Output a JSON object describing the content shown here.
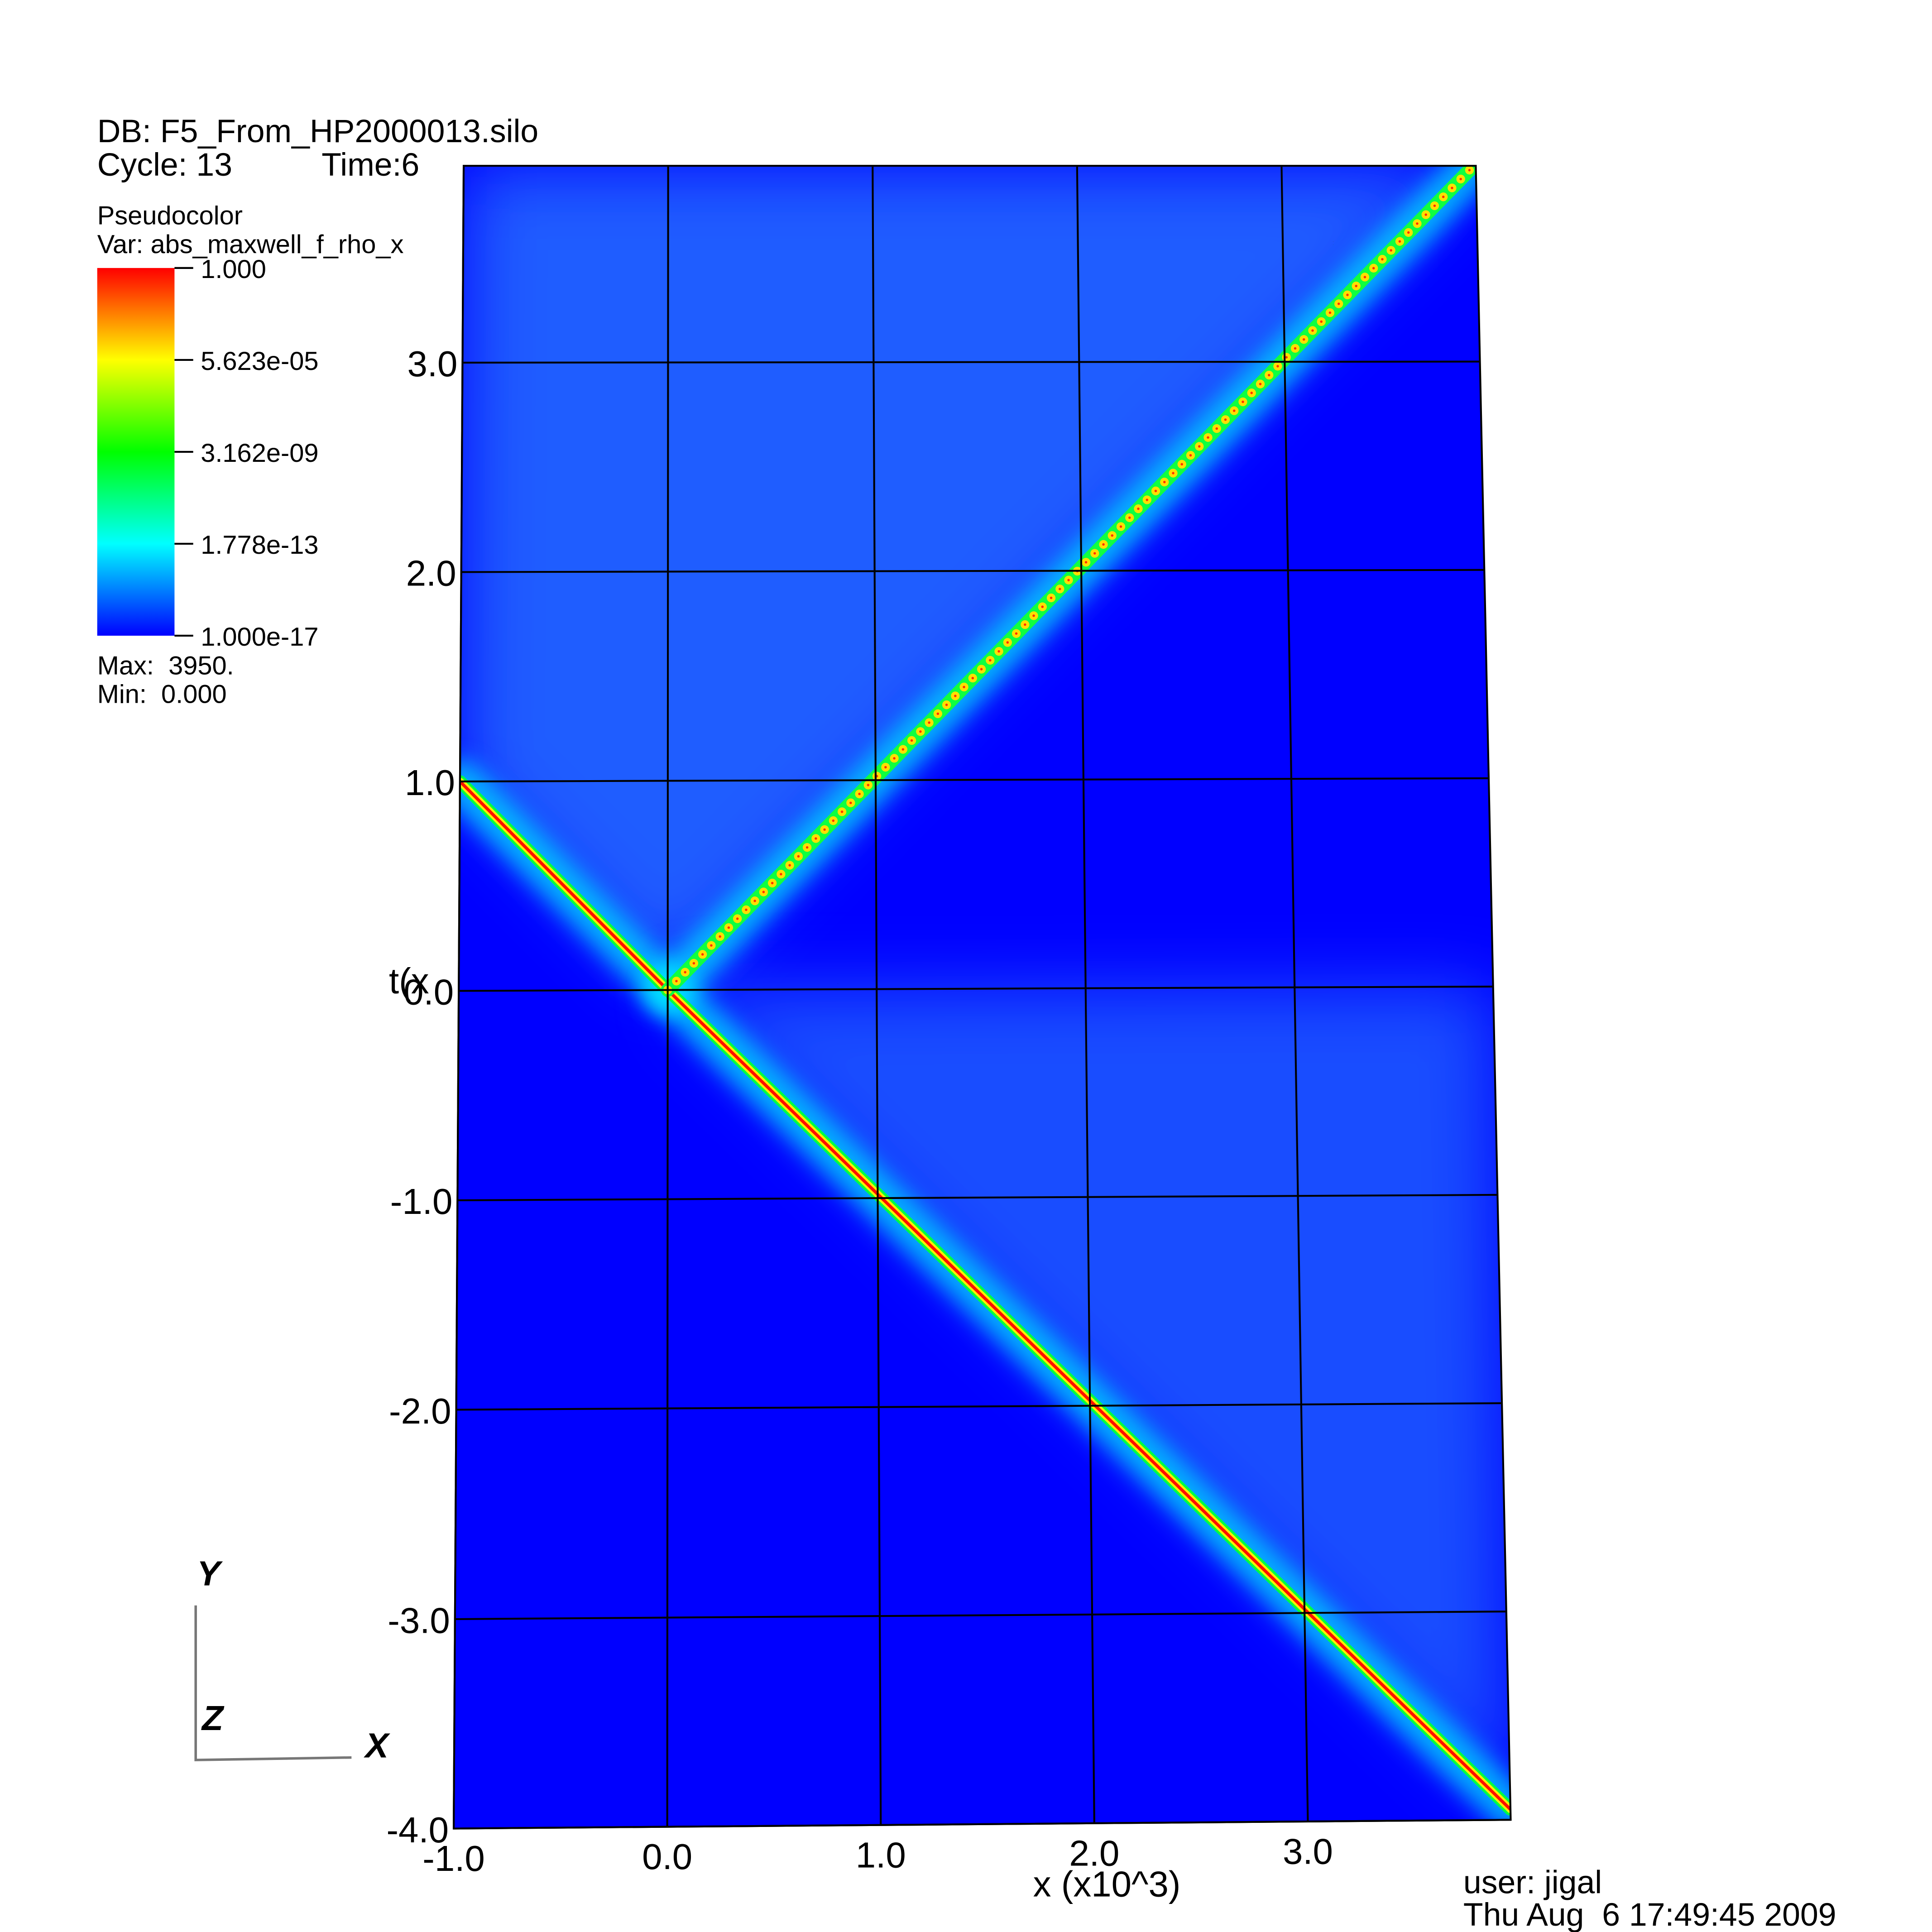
{
  "header": {
    "db": "DB: F5_From_HP2000013.silo",
    "cycle": "Cycle: 13",
    "time": "Time:6"
  },
  "chart_data": {
    "type": "pseudocolor",
    "xlabel": "x (x10^3)",
    "ylabel": "t(x",
    "xlim": [
      -1,
      3.95
    ],
    "ylim": [
      -4,
      3.94
    ],
    "xticks": [
      {
        "value": -1,
        "label": "-1.0"
      },
      {
        "value": 0,
        "label": "0.0"
      },
      {
        "value": 1,
        "label": "1.0"
      },
      {
        "value": 2,
        "label": "2.0"
      },
      {
        "value": 3,
        "label": "3.0"
      }
    ],
    "yticks": [
      {
        "value": -4,
        "label": "-4.0"
      },
      {
        "value": -3,
        "label": "-3.0"
      },
      {
        "value": -2,
        "label": "-2.0"
      },
      {
        "value": -1,
        "label": "-1.0"
      },
      {
        "value": 0,
        "label": "0.0"
      },
      {
        "value": 1,
        "label": "1.0"
      },
      {
        "value": 2,
        "label": "2.0"
      },
      {
        "value": 3,
        "label": "3.0"
      }
    ],
    "grid": true,
    "colorbar": {
      "plot": "Pseudocolor",
      "var": "Var: abs_maxwell_f_rho_x",
      "scale": "log",
      "clim": [
        1e-17,
        1
      ],
      "ticks": [
        {
          "value": 1,
          "label": "1.000"
        },
        {
          "value": 5.623e-05,
          "label": "5.623e-05"
        },
        {
          "value": 3.162e-09,
          "label": "3.162e-09"
        },
        {
          "value": 1.778e-13,
          "label": "1.778e-13"
        },
        {
          "value": 1e-17,
          "label": "1.000e-17"
        }
      ],
      "max": "Max:  3950.",
      "min": "Min:  0.000"
    }
  },
  "triad": {
    "y": "Y",
    "z": "Z",
    "x": "X"
  },
  "footer": {
    "user": "user: jigal",
    "date": "Thu Aug  6 17:49:45 2009"
  }
}
